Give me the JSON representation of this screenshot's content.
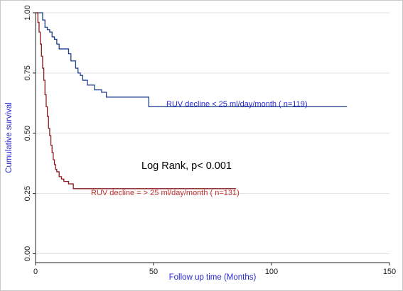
{
  "chart_data": {
    "type": "line",
    "subtype": "kaplan-meier step",
    "title": "",
    "xlabel": "Follow up time (Months)",
    "ylabel": "Cumulative survival",
    "xlim": [
      0,
      150
    ],
    "ylim": [
      0,
      1
    ],
    "x_ticks": [
      "0",
      "50",
      "100",
      "150"
    ],
    "y_ticks": [
      "0.00",
      "0.25",
      "0.50",
      "0.75",
      "1.00"
    ],
    "grid": "horizontal",
    "annotation": "Log Rank, p< 0.001",
    "series": [
      {
        "name": "RUV decline  < 25 ml/day/month ( n=119)",
        "color": "#1f3f8f",
        "label_color": "#2a2ad0",
        "x": [
          0,
          3,
          4,
          5,
          6,
          7,
          8,
          9,
          10,
          13,
          14,
          15,
          16,
          17,
          18,
          19,
          20,
          22,
          25,
          27,
          28,
          30,
          48,
          132
        ],
        "y": [
          1.0,
          0.97,
          0.94,
          0.93,
          0.92,
          0.9,
          0.89,
          0.87,
          0.85,
          0.85,
          0.83,
          0.8,
          0.8,
          0.77,
          0.75,
          0.74,
          0.72,
          0.7,
          0.68,
          0.68,
          0.67,
          0.65,
          0.61,
          0.61
        ]
      },
      {
        "name": "RUV decline = > 25 ml/day/month ( n=131)",
        "color": "#8b1a1a",
        "label_color": "#c03030",
        "x": [
          0,
          1,
          1.5,
          2,
          2.5,
          3,
          3.5,
          4,
          4.5,
          5,
          5.5,
          6,
          6.5,
          7,
          7.5,
          8,
          8.5,
          9,
          10,
          11,
          12,
          13,
          14,
          16,
          85
        ],
        "y": [
          1.0,
          0.96,
          0.92,
          0.87,
          0.82,
          0.77,
          0.72,
          0.66,
          0.61,
          0.57,
          0.52,
          0.49,
          0.45,
          0.42,
          0.39,
          0.37,
          0.35,
          0.34,
          0.32,
          0.31,
          0.3,
          0.3,
          0.29,
          0.27,
          0.27
        ]
      }
    ]
  }
}
